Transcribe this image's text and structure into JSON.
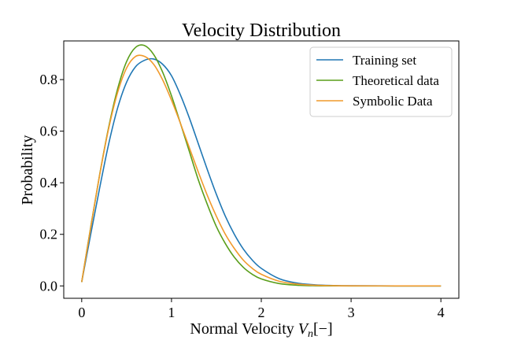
{
  "chart_data": {
    "type": "line",
    "title": "Velocity Distribution",
    "xlabel_main": "Normal Velocity ",
    "xlabel_var": "V",
    "xlabel_sub": "n",
    "xlabel_unit": "[−]",
    "ylabel": "Probability",
    "xlim": [
      -0.2,
      4.2
    ],
    "ylim": [
      -0.048,
      0.95
    ],
    "xticks": [
      0,
      1,
      2,
      3,
      4
    ],
    "xtick_labels": [
      "0",
      "1",
      "2",
      "3",
      "4"
    ],
    "yticks": [
      0.0,
      0.2,
      0.4,
      0.6,
      0.8
    ],
    "ytick_labels": [
      "0.0",
      "0.2",
      "0.4",
      "0.6",
      "0.8"
    ],
    "grid": false,
    "legend_position": "top-right",
    "series": [
      {
        "name": "Training set",
        "color": "#1f77b4",
        "x": [
          0.0,
          0.1,
          0.2,
          0.3,
          0.4,
          0.5,
          0.6,
          0.7,
          0.8,
          0.9,
          1.0,
          1.1,
          1.2,
          1.3,
          1.4,
          1.5,
          1.6,
          1.7,
          1.8,
          1.9,
          2.0,
          2.2,
          2.4,
          2.6,
          2.8,
          3.0,
          3.5,
          4.0
        ],
        "y": [
          0.015,
          0.2,
          0.38,
          0.55,
          0.69,
          0.79,
          0.85,
          0.875,
          0.88,
          0.86,
          0.815,
          0.74,
          0.65,
          0.55,
          0.45,
          0.355,
          0.27,
          0.2,
          0.143,
          0.1,
          0.068,
          0.028,
          0.011,
          0.004,
          0.0015,
          0.0005,
          0.0,
          0.0
        ]
      },
      {
        "name": "Theoretical data",
        "color": "#5a9e1a",
        "x": [
          0.0,
          0.1,
          0.2,
          0.3,
          0.4,
          0.5,
          0.6,
          0.7,
          0.8,
          0.9,
          1.0,
          1.1,
          1.2,
          1.3,
          1.4,
          1.5,
          1.6,
          1.7,
          1.8,
          1.9,
          2.0,
          2.2,
          2.4,
          2.6,
          2.8,
          3.0,
          3.5,
          4.0
        ],
        "y": [
          0.015,
          0.228,
          0.432,
          0.615,
          0.764,
          0.87,
          0.925,
          0.932,
          0.898,
          0.83,
          0.737,
          0.63,
          0.52,
          0.41,
          0.315,
          0.23,
          0.164,
          0.111,
          0.072,
          0.045,
          0.027,
          0.009,
          0.0027,
          0.0007,
          0.0002,
          0.0,
          0.0,
          0.0
        ]
      },
      {
        "name": "Symbolic Data",
        "color": "#f19a2c",
        "x": [
          0.0,
          0.1,
          0.2,
          0.3,
          0.4,
          0.5,
          0.6,
          0.7,
          0.8,
          0.9,
          1.0,
          1.1,
          1.2,
          1.3,
          1.4,
          1.5,
          1.6,
          1.7,
          1.8,
          1.9,
          2.0,
          2.2,
          2.4,
          2.6,
          2.8,
          3.0,
          3.5,
          4.0
        ],
        "y": [
          0.015,
          0.225,
          0.43,
          0.61,
          0.75,
          0.845,
          0.89,
          0.89,
          0.86,
          0.8,
          0.72,
          0.63,
          0.535,
          0.44,
          0.35,
          0.27,
          0.2,
          0.145,
          0.1,
          0.068,
          0.045,
          0.018,
          0.007,
          0.0025,
          0.001,
          0.0003,
          0.0,
          0.0
        ]
      }
    ]
  }
}
